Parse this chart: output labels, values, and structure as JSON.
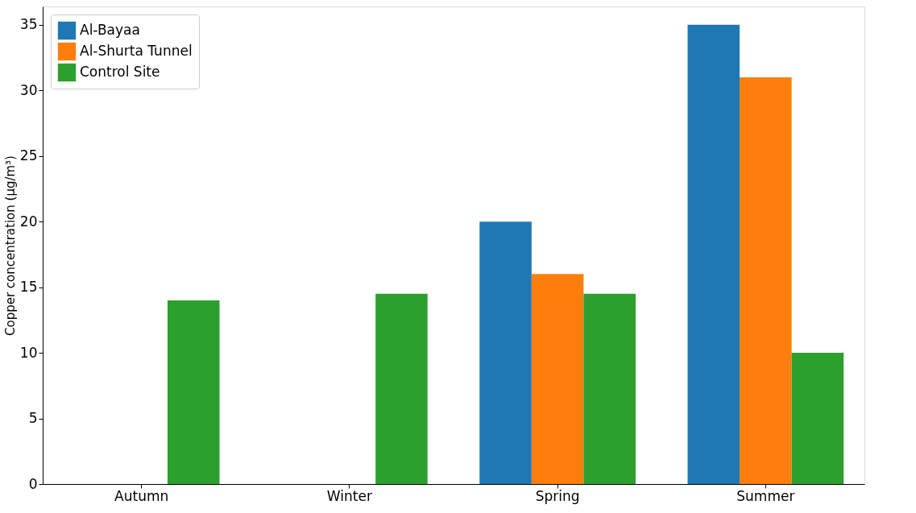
{
  "chart_data": {
    "type": "bar",
    "ylabel": "Copper concentration (µg/m³)",
    "categories": [
      "Autumn",
      "Winter",
      "Spring",
      "Summer"
    ],
    "series": [
      {
        "name": "Al-Bayaa",
        "color": "#1f77b4",
        "values": [
          null,
          null,
          20,
          35
        ]
      },
      {
        "name": "Al-Shurta Tunnel",
        "color": "#ff7f0e",
        "values": [
          null,
          null,
          16,
          31
        ]
      },
      {
        "name": "Control Site",
        "color": "#2ca02c",
        "values": [
          14,
          14.5,
          14.5,
          10
        ]
      }
    ],
    "ylim": [
      0,
      36.4
    ],
    "yticks": [
      0,
      5,
      10,
      15,
      20,
      25,
      30,
      35
    ],
    "grid": false,
    "legend": "top left"
  }
}
